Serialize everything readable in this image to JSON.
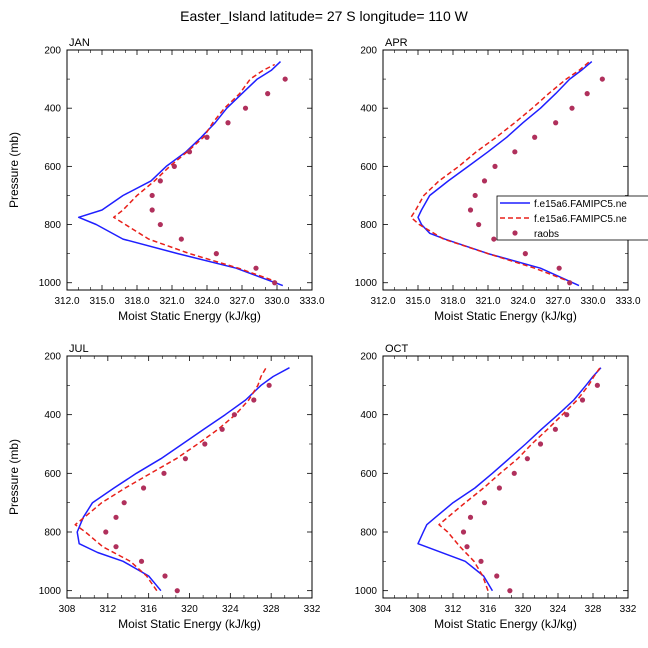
{
  "title": "Easter_Island  latitude= 27 S longitude= 110 W",
  "colors": {
    "model1": "#1f1fff",
    "model2": "#e8201a",
    "raobs": "#b0305c"
  },
  "legend": {
    "entries": [
      "f.e15a6.FAMIPC5.ne",
      "f.e15a6.FAMIPC5.ne",
      "raobs"
    ]
  },
  "chart_data": [
    {
      "type": "line",
      "panel": "JAN",
      "xlabel": "Moist Static Energy (kJ/kg)",
      "ylabel": "Pressure (mb)",
      "xlim": [
        312,
        333
      ],
      "ylim": [
        200,
        1025
      ],
      "xticks": [
        "312.0",
        "315.0",
        "318.0",
        "321.0",
        "324.0",
        "327.0",
        "330.0",
        "333.0"
      ],
      "yticks": [
        "200",
        "400",
        "600",
        "800",
        "1000"
      ],
      "series": [
        {
          "name": "f.e15a6.FAMIPC5.ne",
          "style": "solid",
          "pressure": [
            1010,
            950,
            900,
            850,
            800,
            775,
            750,
            700,
            650,
            600,
            550,
            500,
            450,
            400,
            350,
            300,
            270,
            240
          ],
          "mse": [
            330.5,
            326.5,
            321.5,
            316.8,
            314.5,
            313.0,
            315.0,
            316.8,
            319.2,
            320.5,
            322.2,
            323.5,
            324.7,
            325.7,
            327.0,
            328.3,
            329.5,
            330.3
          ]
        },
        {
          "name": "f.e15a6.FAMIPC5.ne",
          "style": "dashed",
          "pressure": [
            990,
            950,
            900,
            850,
            800,
            775,
            750,
            700,
            650,
            600,
            550,
            500,
            450,
            400,
            350,
            300,
            270,
            250
          ],
          "mse": [
            329.5,
            326.7,
            322.5,
            319.0,
            317.0,
            316.0,
            316.8,
            318.0,
            319.5,
            320.8,
            322.3,
            323.7,
            324.5,
            325.5,
            326.8,
            327.7,
            328.8,
            329.8
          ]
        },
        {
          "name": "raobs",
          "style": "markers",
          "pressure": [
            1000,
            950,
            900,
            850,
            800,
            750,
            700,
            650,
            600,
            550,
            500,
            450,
            400,
            350,
            300
          ],
          "mse": [
            329.8,
            328.2,
            324.8,
            321.8,
            320.0,
            319.3,
            319.3,
            320.0,
            321.2,
            322.5,
            324.0,
            325.8,
            327.3,
            329.2,
            330.7
          ]
        }
      ]
    },
    {
      "type": "line",
      "panel": "APR",
      "xlabel": "Moist Static Energy (kJ/kg)",
      "ylabel": "",
      "xlim": [
        312,
        333
      ],
      "ylim": [
        200,
        1025
      ],
      "xticks": [
        "312.0",
        "315.0",
        "318.0",
        "321.0",
        "324.0",
        "327.0",
        "330.0",
        "333.0"
      ],
      "yticks": [
        "200",
        "400",
        "600",
        "800",
        "1000"
      ],
      "series": [
        {
          "name": "f.e15a6.FAMIPC5.ne",
          "style": "solid",
          "pressure": [
            1010,
            950,
            900,
            850,
            830,
            800,
            775,
            750,
            700,
            650,
            600,
            550,
            500,
            450,
            400,
            350,
            300,
            270,
            240
          ],
          "mse": [
            328.8,
            325.5,
            321.0,
            317.3,
            316.0,
            315.3,
            315.0,
            315.3,
            316.0,
            317.6,
            319.3,
            321.0,
            322.6,
            324.0,
            325.5,
            326.8,
            328.0,
            329.0,
            329.9
          ]
        },
        {
          "name": "f.e15a6.FAMIPC5.ne",
          "style": "dashed",
          "pressure": [
            990,
            950,
            900,
            850,
            800,
            775,
            750,
            700,
            650,
            600,
            550,
            500,
            450,
            400,
            350,
            300,
            270,
            240
          ],
          "mse": [
            327.6,
            325.0,
            321.0,
            317.2,
            315.1,
            314.4,
            314.8,
            315.5,
            316.8,
            318.5,
            320.0,
            321.7,
            323.3,
            324.8,
            326.2,
            327.7,
            328.8,
            329.7
          ]
        },
        {
          "name": "raobs",
          "style": "markers",
          "pressure": [
            1000,
            950,
            900,
            850,
            800,
            750,
            700,
            650,
            600,
            550,
            500,
            450,
            400,
            350,
            300
          ],
          "mse": [
            328.0,
            327.1,
            324.2,
            321.5,
            320.2,
            319.5,
            319.9,
            320.7,
            321.6,
            323.3,
            325.0,
            326.8,
            328.2,
            329.5,
            330.8
          ]
        }
      ]
    },
    {
      "type": "line",
      "panel": "JUL",
      "xlabel": "Moist Static Energy (kJ/kg)",
      "ylabel": "Pressure (mb)",
      "xlim": [
        308,
        332
      ],
      "ylim": [
        200,
        1025
      ],
      "xticks": [
        "308",
        "312",
        "316",
        "320",
        "324",
        "328",
        "332"
      ],
      "yticks": [
        "200",
        "400",
        "600",
        "800",
        "1000"
      ],
      "series": [
        {
          "name": "f.e15a6.FAMIPC5.ne",
          "style": "solid",
          "pressure": [
            1000,
            950,
            900,
            870,
            840,
            800,
            750,
            700,
            650,
            600,
            550,
            500,
            450,
            400,
            350,
            300,
            270,
            240
          ],
          "mse": [
            317.2,
            316.0,
            313.5,
            311.0,
            309.2,
            309.0,
            309.6,
            310.5,
            312.6,
            314.8,
            317.2,
            319.3,
            321.4,
            323.5,
            325.5,
            327.0,
            328.2,
            329.8
          ]
        },
        {
          "name": "f.e15a6.FAMIPC5.ne",
          "style": "dashed",
          "pressure": [
            1000,
            950,
            900,
            850,
            800,
            775,
            750,
            700,
            650,
            600,
            550,
            500,
            450,
            400,
            350,
            300,
            270,
            240
          ],
          "mse": [
            316.8,
            315.8,
            314.2,
            311.5,
            309.8,
            308.8,
            309.7,
            311.4,
            313.7,
            316.2,
            318.7,
            320.8,
            322.8,
            324.5,
            325.8,
            326.7,
            327.0,
            327.5
          ]
        },
        {
          "name": "raobs",
          "style": "markers",
          "pressure": [
            1000,
            950,
            900,
            850,
            800,
            750,
            700,
            650,
            600,
            550,
            500,
            450,
            400,
            350,
            300
          ],
          "mse": [
            318.8,
            317.6,
            315.3,
            312.8,
            311.8,
            312.8,
            313.6,
            315.5,
            317.5,
            319.6,
            321.5,
            323.2,
            324.4,
            326.3,
            327.8
          ]
        }
      ]
    },
    {
      "type": "line",
      "panel": "OCT",
      "xlabel": "Moist Static Energy (kJ/kg)",
      "ylabel": "",
      "xlim": [
        304,
        332
      ],
      "ylim": [
        200,
        1025
      ],
      "xticks": [
        "304",
        "308",
        "312",
        "316",
        "320",
        "324",
        "328",
        "332"
      ],
      "yticks": [
        "200",
        "400",
        "600",
        "800",
        "1000"
      ],
      "series": [
        {
          "name": "f.e15a6.FAMIPC5.ne",
          "style": "solid",
          "pressure": [
            1000,
            950,
            900,
            840,
            800,
            775,
            750,
            700,
            650,
            600,
            550,
            500,
            450,
            400,
            350,
            300,
            270,
            240
          ],
          "mse": [
            316.5,
            315.5,
            313.4,
            308.0,
            308.6,
            309.0,
            310.0,
            312.0,
            314.5,
            316.5,
            318.4,
            320.3,
            322.1,
            324.0,
            325.8,
            327.2,
            328.0,
            328.9
          ]
        },
        {
          "name": "f.e15a6.FAMIPC5.ne",
          "style": "dashed",
          "pressure": [
            1000,
            950,
            900,
            850,
            800,
            775,
            750,
            700,
            650,
            600,
            550,
            500,
            450,
            400,
            350,
            300,
            270,
            240
          ],
          "mse": [
            316.0,
            315.4,
            314.4,
            312.8,
            311.4,
            310.4,
            311.4,
            313.4,
            315.5,
            317.4,
            319.4,
            321.0,
            322.8,
            324.5,
            326.2,
            327.5,
            328.1,
            328.8
          ]
        },
        {
          "name": "raobs",
          "style": "markers",
          "pressure": [
            1000,
            950,
            900,
            850,
            800,
            750,
            700,
            650,
            600,
            550,
            500,
            450,
            400,
            350,
            300
          ],
          "mse": [
            318.5,
            317.0,
            315.2,
            313.6,
            313.2,
            314.0,
            315.6,
            317.3,
            319.0,
            320.5,
            322.0,
            323.7,
            325.0,
            326.8,
            328.5
          ]
        }
      ]
    }
  ]
}
